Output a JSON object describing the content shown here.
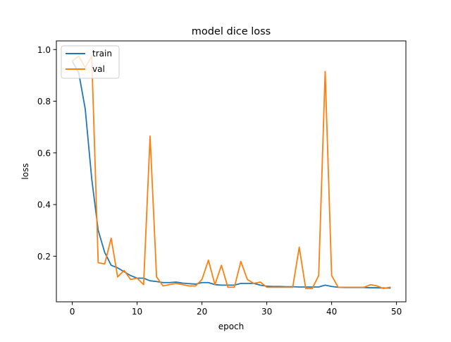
{
  "chart_data": {
    "type": "line",
    "title": "model dice loss",
    "xlabel": "epoch",
    "ylabel": "loss",
    "xlim": [
      -2.45,
      51.45
    ],
    "ylim": [
      0.0236,
      1.0335
    ],
    "xticks": [
      0,
      10,
      20,
      30,
      40,
      50
    ],
    "yticks": [
      0.2,
      0.4,
      0.6,
      0.8,
      1.0
    ],
    "xtick_labels": [
      "0",
      "10",
      "20",
      "30",
      "40",
      "50"
    ],
    "ytick_labels": [
      "0.2",
      "0.4",
      "0.6",
      "0.8",
      "1.0"
    ],
    "grid": false,
    "legend_position": "upper-left",
    "series": [
      {
        "name": "train",
        "color": "#1f77b4",
        "x": [
          0,
          1,
          2,
          3,
          4,
          5,
          6,
          7,
          8,
          9,
          10,
          11,
          12,
          13,
          14,
          15,
          16,
          17,
          18,
          19,
          20,
          21,
          22,
          23,
          24,
          25,
          26,
          27,
          28,
          29,
          30,
          31,
          32,
          33,
          34,
          35,
          36,
          37,
          38,
          39,
          40,
          41,
          42,
          43,
          44,
          45,
          46,
          47,
          48,
          49
        ],
        "values": [
          0.955,
          0.91,
          0.77,
          0.5,
          0.3,
          0.215,
          0.165,
          0.155,
          0.14,
          0.125,
          0.115,
          0.115,
          0.105,
          0.102,
          0.098,
          0.098,
          0.1,
          0.096,
          0.094,
          0.092,
          0.098,
          0.098,
          0.09,
          0.088,
          0.088,
          0.088,
          0.095,
          0.095,
          0.095,
          0.088,
          0.084,
          0.083,
          0.083,
          0.082,
          0.082,
          0.081,
          0.081,
          0.081,
          0.081,
          0.088,
          0.083,
          0.08,
          0.079,
          0.079,
          0.079,
          0.079,
          0.078,
          0.078,
          0.077,
          0.077
        ]
      },
      {
        "name": "val",
        "color": "#ff7f0e",
        "x": [
          0,
          1,
          2,
          3,
          4,
          5,
          6,
          7,
          8,
          9,
          10,
          11,
          12,
          13,
          14,
          15,
          16,
          17,
          18,
          19,
          20,
          21,
          22,
          23,
          24,
          25,
          26,
          27,
          28,
          29,
          30,
          31,
          32,
          33,
          34,
          35,
          36,
          37,
          38,
          39,
          40,
          41,
          42,
          43,
          44,
          45,
          46,
          47,
          48,
          49
        ],
        "values": [
          0.955,
          0.975,
          0.93,
          0.975,
          0.175,
          0.17,
          0.27,
          0.12,
          0.145,
          0.11,
          0.115,
          0.09,
          0.665,
          0.12,
          0.085,
          0.09,
          0.095,
          0.09,
          0.085,
          0.085,
          0.11,
          0.185,
          0.09,
          0.165,
          0.08,
          0.08,
          0.18,
          0.11,
          0.095,
          0.1,
          0.08,
          0.08,
          0.08,
          0.08,
          0.08,
          0.235,
          0.075,
          0.075,
          0.125,
          0.915,
          0.125,
          0.08,
          0.08,
          0.08,
          0.08,
          0.08,
          0.09,
          0.085,
          0.075,
          0.08
        ]
      }
    ]
  }
}
